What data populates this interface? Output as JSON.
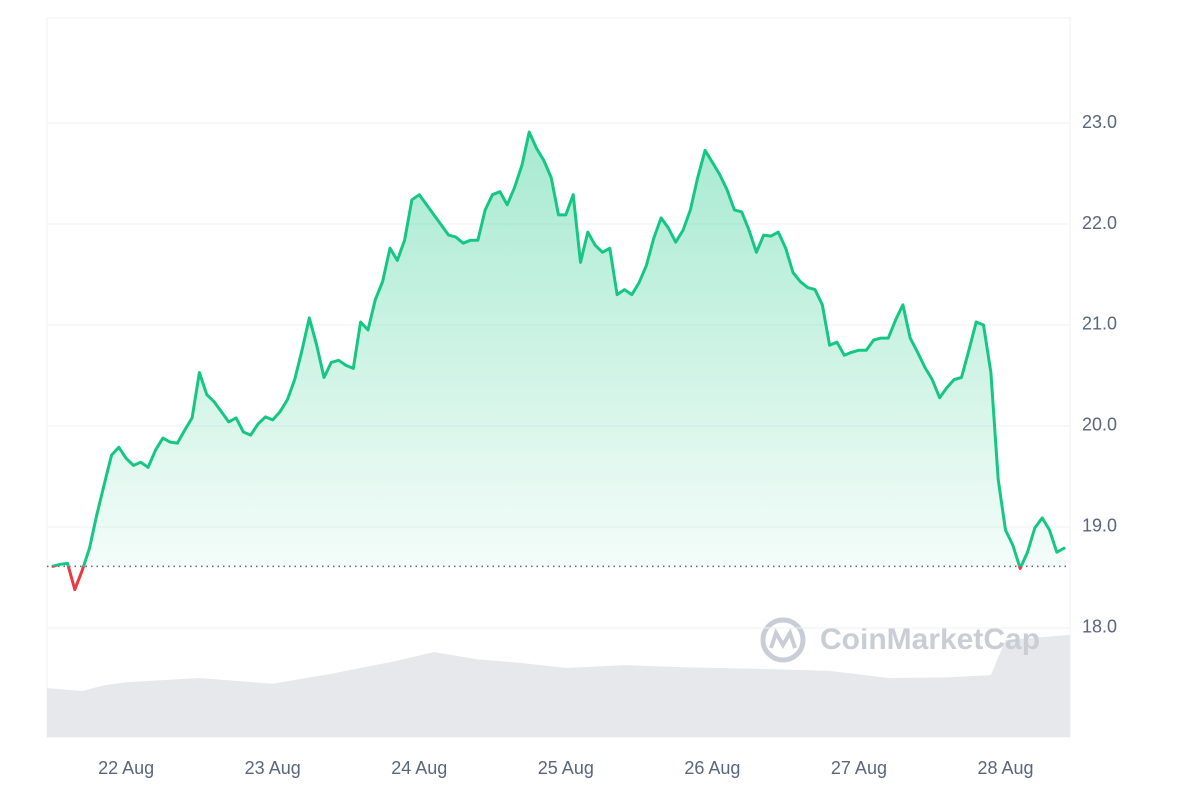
{
  "chart_data": {
    "type": "line",
    "x": [
      21.5,
      21.55,
      21.6,
      21.65,
      21.7,
      21.75,
      21.8,
      21.85,
      21.9,
      21.95,
      22.0,
      22.05,
      22.1,
      22.15,
      22.2,
      22.25,
      22.3,
      22.35,
      22.4,
      22.45,
      22.5,
      22.55,
      22.6,
      22.65,
      22.7,
      22.75,
      22.8,
      22.85,
      22.9,
      22.95,
      23.0,
      23.05,
      23.1,
      23.15,
      23.2,
      23.25,
      23.3,
      23.35,
      23.4,
      23.45,
      23.5,
      23.55,
      23.6,
      23.65,
      23.7,
      23.75,
      23.8,
      23.85,
      23.9,
      23.95,
      24.0,
      24.05,
      24.1,
      24.15,
      24.2,
      24.25,
      24.3,
      24.35,
      24.4,
      24.45,
      24.5,
      24.55,
      24.6,
      24.65,
      24.7,
      24.75,
      24.8,
      24.85,
      24.9,
      24.95,
      25.0,
      25.05,
      25.1,
      25.15,
      25.2,
      25.25,
      25.3,
      25.35,
      25.4,
      25.45,
      25.5,
      25.55,
      25.6,
      25.65,
      25.7,
      25.75,
      25.8,
      25.85,
      25.9,
      25.95,
      26.0,
      26.05,
      26.1,
      26.15,
      26.2,
      26.25,
      26.3,
      26.35,
      26.4,
      26.45,
      26.5,
      26.55,
      26.6,
      26.65,
      26.7,
      26.75,
      26.8,
      26.85,
      26.9,
      26.95,
      27.0,
      27.05,
      27.1,
      27.15,
      27.2,
      27.25,
      27.3,
      27.35,
      27.4,
      27.45,
      27.5,
      27.55,
      27.6,
      27.65,
      27.7,
      27.75,
      27.8,
      27.85,
      27.9,
      27.95,
      28.0,
      28.05,
      28.1,
      28.15,
      28.2,
      28.25,
      28.3,
      28.35,
      28.4
    ],
    "values": [
      18.61,
      18.63,
      18.64,
      18.38,
      18.57,
      18.79,
      19.12,
      19.42,
      19.71,
      19.79,
      19.68,
      19.61,
      19.64,
      19.59,
      19.76,
      19.88,
      19.84,
      19.83,
      19.96,
      20.08,
      20.53,
      20.31,
      20.24,
      20.14,
      20.04,
      20.08,
      19.94,
      19.91,
      20.02,
      20.09,
      20.06,
      20.14,
      20.26,
      20.46,
      20.75,
      21.07,
      20.8,
      20.48,
      20.63,
      20.65,
      20.6,
      20.57,
      21.03,
      20.95,
      21.25,
      21.43,
      21.76,
      21.64,
      21.84,
      22.24,
      22.29,
      22.19,
      22.09,
      21.99,
      21.89,
      21.87,
      21.81,
      21.84,
      21.84,
      22.14,
      22.29,
      22.32,
      22.19,
      22.36,
      22.58,
      22.91,
      22.75,
      22.63,
      22.46,
      22.09,
      22.09,
      22.29,
      21.62,
      21.92,
      21.79,
      21.72,
      21.76,
      21.3,
      21.35,
      21.3,
      21.42,
      21.59,
      21.86,
      22.06,
      21.96,
      21.82,
      21.94,
      22.14,
      22.46,
      22.73,
      22.61,
      22.49,
      22.34,
      22.14,
      22.12,
      21.94,
      21.72,
      21.89,
      21.88,
      21.92,
      21.76,
      21.52,
      21.43,
      21.37,
      21.35,
      21.2,
      20.8,
      20.83,
      20.7,
      20.73,
      20.75,
      20.75,
      20.85,
      20.87,
      20.87,
      21.05,
      21.2,
      20.87,
      20.73,
      20.58,
      20.46,
      20.28,
      20.38,
      20.46,
      20.48,
      20.75,
      21.03,
      21.0,
      20.53,
      19.47,
      18.97,
      18.82,
      18.59,
      18.75,
      18.99,
      19.09,
      18.97,
      18.75,
      18.79
    ],
    "color": "#16c784",
    "down_color": "#ea3943",
    "baseline": 18.61,
    "volume": {
      "x": [
        21.46,
        21.7,
        21.85,
        22.0,
        22.5,
        23.0,
        23.4,
        23.8,
        24.1,
        24.4,
        24.7,
        25.0,
        25.4,
        25.8,
        26.3,
        26.8,
        27.2,
        27.6,
        27.9,
        28.0,
        28.44
      ],
      "values": [
        6.8,
        6.4,
        7.2,
        7.6,
        8.2,
        7.4,
        8.8,
        10.4,
        11.8,
        10.8,
        10.3,
        9.6,
        10.0,
        9.7,
        9.5,
        9.2,
        8.2,
        8.3,
        8.6,
        13.5,
        14.2
      ],
      "color": "#e6e8ec"
    },
    "y2lim": [
      0,
      100
    ],
    "xlim": [
      21.46,
      28.44
    ],
    "xticks": [
      {
        "value": 22,
        "label": "22 Aug"
      },
      {
        "value": 23,
        "label": "23 Aug"
      },
      {
        "value": 24,
        "label": "24 Aug"
      },
      {
        "value": 25,
        "label": "25 Aug"
      },
      {
        "value": 26,
        "label": "26 Aug"
      },
      {
        "value": 27,
        "label": "27 Aug"
      },
      {
        "value": 28,
        "label": "28 Aug"
      }
    ],
    "ylim": [
      16.92,
      24.04
    ],
    "yticks": [
      {
        "value": 18,
        "label": "18.0"
      },
      {
        "value": 19,
        "label": "19.0"
      },
      {
        "value": 20,
        "label": "20.0"
      },
      {
        "value": 21,
        "label": "21.0"
      },
      {
        "value": 22,
        "label": "22.0"
      },
      {
        "value": 23,
        "label": "23.0"
      }
    ],
    "grid": true,
    "watermark": "CoinMarketCap"
  }
}
